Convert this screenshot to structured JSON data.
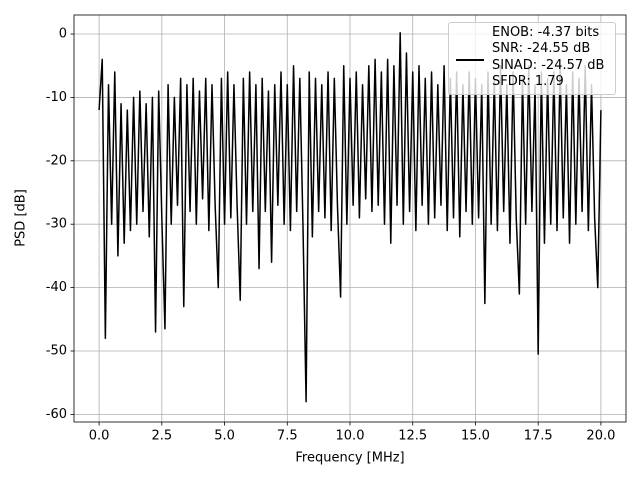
{
  "chart_data": {
    "type": "line",
    "xlabel": "Frequency [MHz]",
    "ylabel": "PSD [dB]",
    "xlim": [
      -1.0,
      21.0
    ],
    "ylim": [
      -61.2,
      3.0
    ],
    "xticks": [
      {
        "value": 0,
        "label": "0.0"
      },
      2.5,
      {
        "value": 5,
        "label": "5.0"
      },
      7.5,
      {
        "value": 10,
        "label": "10.0"
      },
      12.5,
      {
        "value": 15,
        "label": "15.0"
      },
      17.5,
      {
        "value": 20,
        "label": "20.0"
      }
    ],
    "yticks": [
      0,
      -10,
      -20,
      -30,
      -40,
      -50,
      -60
    ],
    "grid": true,
    "legend": "upper right",
    "x": [
      0,
      0.125,
      0.25,
      0.375,
      0.5,
      0.625,
      0.75,
      0.875,
      1,
      1.125,
      1.25,
      1.375,
      1.5,
      1.625,
      1.75,
      1.875,
      2,
      2.125,
      2.25,
      2.375,
      2.5,
      2.625,
      2.75,
      2.875,
      3,
      3.125,
      3.25,
      3.375,
      3.5,
      3.625,
      3.75,
      3.875,
      4,
      4.125,
      4.25,
      4.375,
      4.5,
      4.625,
      4.75,
      4.875,
      5,
      5.125,
      5.25,
      5.375,
      5.5,
      5.625,
      5.75,
      5.875,
      6,
      6.125,
      6.25,
      6.375,
      6.5,
      6.625,
      6.75,
      6.875,
      7,
      7.125,
      7.25,
      7.375,
      7.5,
      7.625,
      7.75,
      7.875,
      8,
      8.125,
      8.25,
      8.375,
      8.5,
      8.625,
      8.75,
      8.875,
      9,
      9.125,
      9.25,
      9.375,
      9.5,
      9.625,
      9.75,
      9.875,
      10,
      10.125,
      10.25,
      10.375,
      10.5,
      10.625,
      10.75,
      10.875,
      11,
      11.125,
      11.25,
      11.375,
      11.5,
      11.625,
      11.75,
      11.875,
      12,
      12.125,
      12.25,
      12.375,
      12.5,
      12.625,
      12.75,
      12.875,
      13,
      13.125,
      13.25,
      13.375,
      13.5,
      13.625,
      13.75,
      13.875,
      14,
      14.125,
      14.25,
      14.375,
      14.5,
      14.625,
      14.75,
      14.875,
      15,
      15.125,
      15.25,
      15.375,
      15.5,
      15.625,
      15.75,
      15.875,
      16,
      16.125,
      16.25,
      16.375,
      16.5,
      16.625,
      16.75,
      16.875,
      17,
      17.125,
      17.25,
      17.375,
      17.5,
      17.625,
      17.75,
      17.875,
      18,
      18.125,
      18.25,
      18.375,
      18.5,
      18.625,
      18.75,
      18.875,
      19,
      19.125,
      19.25,
      19.375,
      19.5,
      19.625,
      19.75,
      19.875,
      20
    ],
    "series": [
      {
        "name": "ENOB: -4.37 bits\nSNR: -24.55 dB\nSINAD: -24.57 dB\nSFDR: 1.79",
        "color": "#000000",
        "values": [
          -12,
          -4,
          -48,
          -8,
          -30,
          -6,
          -35,
          -11,
          -33,
          -12,
          -31,
          -10,
          -30,
          -9,
          -28,
          -11,
          -32,
          -10,
          -47,
          -9,
          -29,
          -46.5,
          -8,
          -30,
          -10,
          -27,
          -7,
          -43,
          -8,
          -28,
          -7,
          -30,
          -9,
          -26,
          -7,
          -31,
          -8,
          -27,
          -40,
          -7,
          -30,
          -6,
          -29,
          -8,
          -27,
          -42,
          -7,
          -30,
          -6,
          -28,
          -8,
          -37,
          -7,
          -28,
          -9,
          -36,
          -8,
          -27,
          -6,
          -30,
          -8,
          -31,
          -5,
          -28,
          -7,
          -30,
          -58,
          -6,
          -32,
          -7,
          -28,
          -8,
          -29,
          -6,
          -31,
          -7,
          -27,
          -41.5,
          -5,
          -30,
          -7,
          -27,
          -6,
          -29,
          -8,
          -26,
          -5,
          -28,
          -4,
          -27,
          -6,
          -30,
          -4,
          -33,
          -5,
          -27,
          0.2,
          -30,
          -3,
          -28,
          -6,
          -31,
          -5,
          -27,
          -7,
          -30,
          -6,
          -29,
          -8,
          -27,
          -5,
          -31,
          -7,
          -29,
          -6,
          -32,
          -8,
          -28,
          -6,
          -30,
          -7,
          -29,
          -8,
          -42.5,
          -6,
          -30,
          -7,
          -31,
          -5,
          -28,
          -8,
          -33,
          -6,
          -29,
          -41,
          -7,
          -30,
          -5,
          -28,
          -8,
          -50.5,
          -6,
          -33,
          -7,
          -30,
          -6,
          -31,
          -5,
          -29,
          -8,
          -33,
          -6,
          -30,
          -7,
          -28,
          -5,
          -31,
          -8,
          -29,
          -40,
          -12
        ]
      }
    ]
  }
}
